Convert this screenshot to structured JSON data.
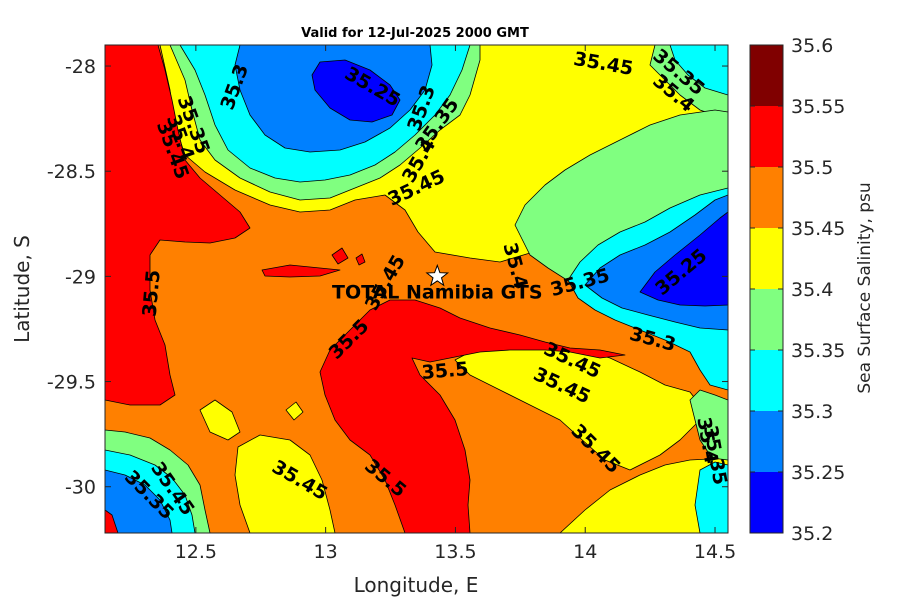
{
  "chart_data": {
    "type": "heatmap",
    "title": "Valid for 12-Jul-2025 2000 GMT",
    "xlabel": "Longitude, E",
    "ylabel": "Latitude, S",
    "xlim": [
      12.15,
      14.55
    ],
    "ylim": [
      -30.22,
      -27.9
    ],
    "xticks": [
      12.5,
      13,
      13.5,
      14,
      14.5
    ],
    "yticks": [
      -28,
      -28.5,
      -29,
      -29.5,
      -30
    ],
    "xtick_labels": [
      "12.5",
      "13",
      "13.5",
      "14",
      "14.5"
    ],
    "ytick_labels": [
      "-28",
      "-28.5",
      "-29",
      "-29.5",
      "-30"
    ],
    "colorbar": {
      "label": "Sea Surface Salinity, psu",
      "levels": [
        35.2,
        35.25,
        35.3,
        35.35,
        35.4,
        35.45,
        35.5,
        35.55,
        35.6
      ],
      "level_labels": [
        "35.2",
        "35.25",
        "35.3",
        "35.35",
        "35.4",
        "35.45",
        "35.5",
        "35.55",
        "35.6"
      ],
      "colors": [
        "#0000ff",
        "#0080ff",
        "#00ffff",
        "#80ff80",
        "#ffff00",
        "#ff8000",
        "#ff0000",
        "#800000"
      ]
    },
    "station": {
      "name": "TOTAL Namibia GTS",
      "lon": 13.43,
      "lat": -29.0
    },
    "contour_labels": [
      {
        "text": "35.3",
        "lon": 12.65,
        "lat": -28.1,
        "rot": -70
      },
      {
        "text": "35.25",
        "lon": 13.18,
        "lat": -28.1,
        "rot": 30
      },
      {
        "text": "35.3",
        "lon": 13.37,
        "lat": -28.2,
        "rot": -70
      },
      {
        "text": "35.35",
        "lon": 13.43,
        "lat": -28.28,
        "rot": -55
      },
      {
        "text": "35.4",
        "lon": 13.36,
        "lat": -28.45,
        "rot": -60
      },
      {
        "text": "35.45",
        "lon": 13.35,
        "lat": -28.58,
        "rot": -25
      },
      {
        "text": "35.35",
        "lon": 12.49,
        "lat": -28.28,
        "rot": 70
      },
      {
        "text": "35.4",
        "lon": 12.44,
        "lat": -28.34,
        "rot": 70
      },
      {
        "text": "35.45",
        "lon": 12.41,
        "lat": -28.4,
        "rot": 70
      },
      {
        "text": "35.45",
        "lon": 14.07,
        "lat": -27.99,
        "rot": 10
      },
      {
        "text": "35.35",
        "lon": 14.36,
        "lat": -28.03,
        "rot": 40
      },
      {
        "text": "35.4",
        "lon": 14.34,
        "lat": -28.13,
        "rot": 40
      },
      {
        "text": "35.5",
        "lon": 12.33,
        "lat": -29.08,
        "rot": -85
      },
      {
        "text": "35.45",
        "lon": 13.23,
        "lat": -29.03,
        "rot": -60
      },
      {
        "text": "35.4",
        "lon": 13.73,
        "lat": -28.95,
        "rot": 75
      },
      {
        "text": "35.35",
        "lon": 13.98,
        "lat": -29.03,
        "rot": -15
      },
      {
        "text": "35.25",
        "lon": 14.37,
        "lat": -28.98,
        "rot": -40
      },
      {
        "text": "35.3",
        "lon": 14.26,
        "lat": -29.3,
        "rot": 15
      },
      {
        "text": "35.5",
        "lon": 13.09,
        "lat": -29.3,
        "rot": -45
      },
      {
        "text": "35.45",
        "lon": 13.95,
        "lat": -29.4,
        "rot": 25
      },
      {
        "text": "35.5",
        "lon": 13.46,
        "lat": -29.45,
        "rot": -5
      },
      {
        "text": "35.45",
        "lon": 13.91,
        "lat": -29.52,
        "rot": 25
      },
      {
        "text": "35.45",
        "lon": 14.04,
        "lat": -29.82,
        "rot": 45
      },
      {
        "text": "35.4",
        "lon": 14.47,
        "lat": -29.78,
        "rot": 80
      },
      {
        "text": "35.35",
        "lon": 14.5,
        "lat": -29.85,
        "rot": 80
      },
      {
        "text": "35.45",
        "lon": 12.9,
        "lat": -29.97,
        "rot": 30
      },
      {
        "text": "35.5",
        "lon": 13.23,
        "lat": -29.96,
        "rot": 40
      },
      {
        "text": "35.45",
        "lon": 12.41,
        "lat": -30.01,
        "rot": 55
      },
      {
        "text": "35.35",
        "lon": 12.32,
        "lat": -30.04,
        "rot": 45
      }
    ]
  }
}
